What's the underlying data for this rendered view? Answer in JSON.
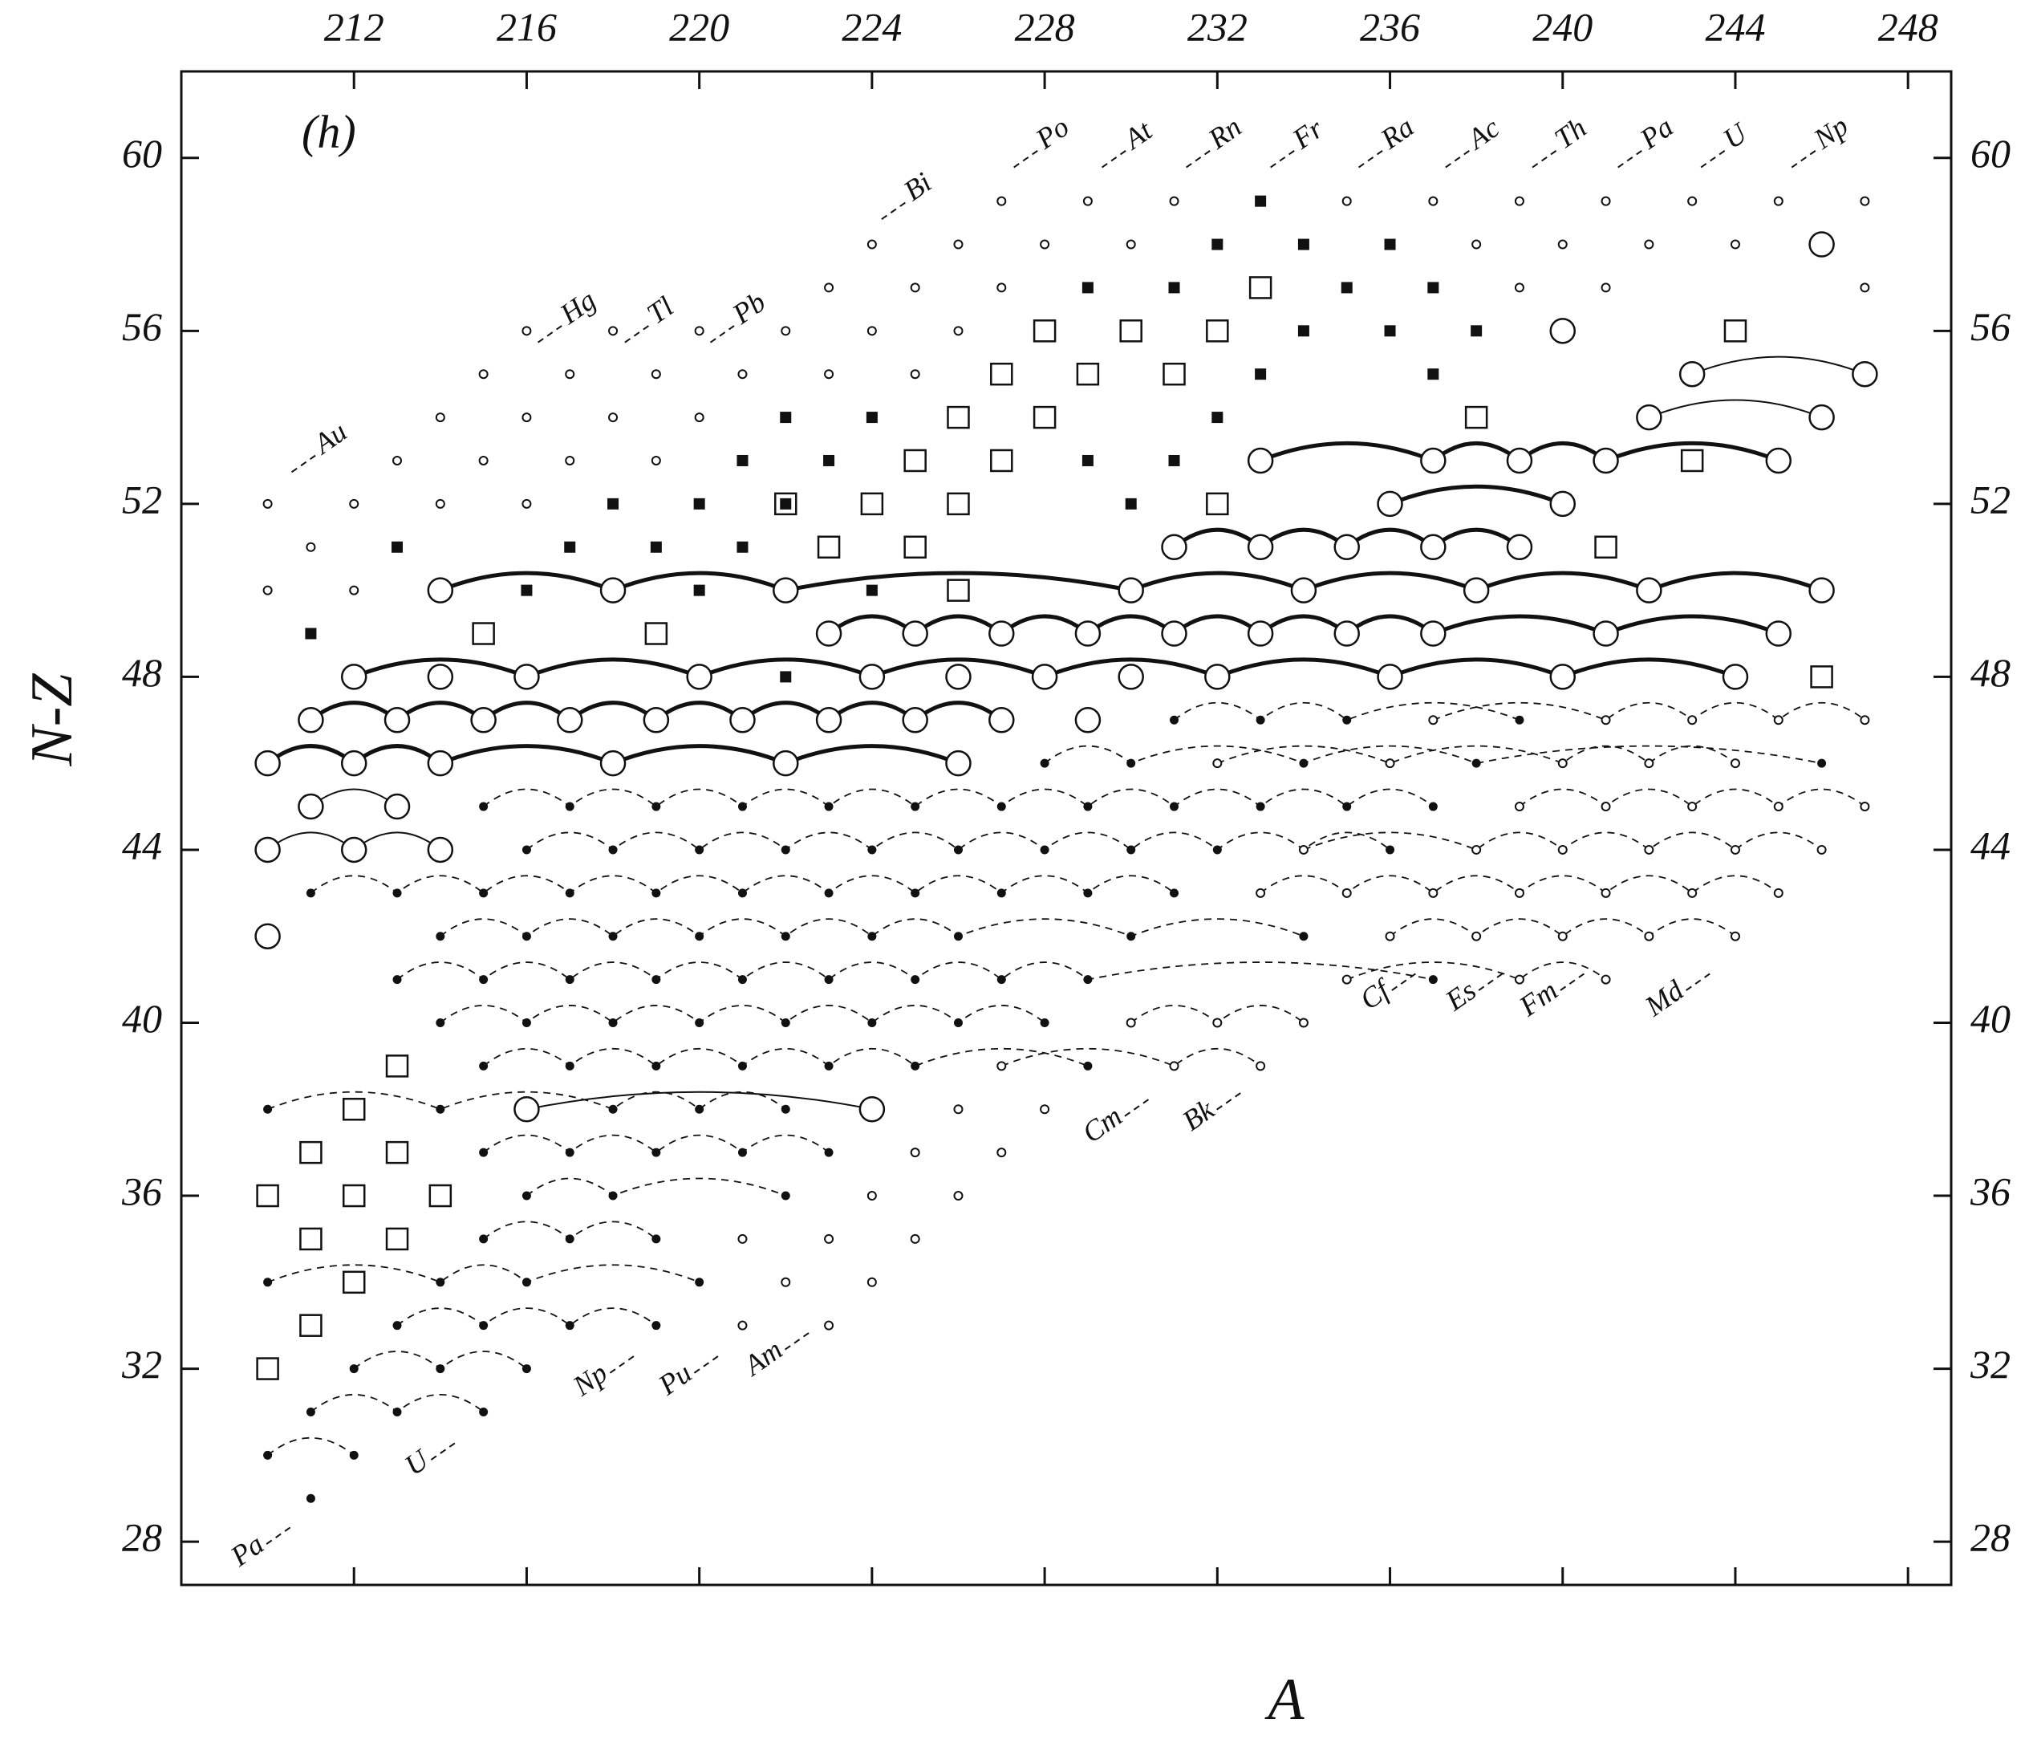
{
  "chart_data": {
    "type": "scatter",
    "panel_label": "(h)",
    "x_label": "A",
    "y_label": "N-Z",
    "xlim": [
      208,
      249
    ],
    "ylim": [
      27,
      62
    ],
    "xticks": [
      212,
      216,
      220,
      224,
      228,
      232,
      236,
      240,
      244,
      248
    ],
    "yticks": [
      28,
      32,
      36,
      40,
      44,
      48,
      52,
      56,
      60
    ],
    "top_labels": [
      "Au",
      "Hg",
      "Tl",
      "Pb",
      "Bi",
      "Po",
      "At",
      "Rn",
      "Fr",
      "Ra",
      "Ac",
      "Th",
      "Pa",
      "U",
      "Np"
    ],
    "bottom_labels": [
      "Pa",
      "U",
      "Np",
      "Pu",
      "Am",
      "Cm",
      "Bk",
      "Cf",
      "Es",
      "Fm",
      "Md"
    ],
    "series": [
      {
        "marker": "circle",
        "line": "thick",
        "x": [
          214,
          218,
          222,
          230,
          234,
          238,
          242,
          246
        ],
        "values": [
          50,
          50,
          50,
          50,
          50,
          50,
          50,
          50
        ]
      },
      {
        "marker": "circle",
        "line": "thick",
        "x": [
          223,
          225,
          227,
          229,
          231,
          233,
          235,
          237,
          241,
          245
        ],
        "values": [
          49,
          49,
          49,
          49,
          49,
          49,
          49,
          49,
          49,
          49
        ]
      },
      {
        "marker": "circle",
        "line": "thick",
        "x": [
          212,
          216,
          220,
          224,
          228,
          232,
          236,
          240,
          244
        ],
        "values": [
          48,
          48,
          48,
          48,
          48,
          48,
          48,
          48,
          48
        ]
      },
      {
        "marker": "circle",
        "line": "thick",
        "x": [
          211,
          213,
          215,
          217,
          219,
          221,
          223,
          225,
          227
        ],
        "values": [
          47,
          47,
          47,
          47,
          47,
          47,
          47,
          47,
          47
        ]
      },
      {
        "marker": "circle",
        "line": "thick",
        "x": [
          210,
          212,
          214,
          218,
          222,
          226
        ],
        "values": [
          46,
          46,
          46,
          46,
          46,
          46
        ]
      },
      {
        "marker": "circle",
        "line": "thin",
        "x": [
          211,
          213
        ],
        "values": [
          45,
          45
        ]
      },
      {
        "marker": "circle",
        "line": "thin",
        "x": [
          210,
          212,
          214
        ],
        "values": [
          44,
          44,
          44
        ]
      },
      {
        "marker": "circle",
        "line": "thick",
        "x": [
          231,
          233,
          235,
          237,
          239
        ],
        "values": [
          51,
          51,
          51,
          51,
          51
        ]
      },
      {
        "marker": "circle",
        "line": "thick",
        "x": [
          236,
          240
        ],
        "values": [
          52,
          52
        ]
      },
      {
        "marker": "circle",
        "line": "thick",
        "x": [
          233,
          237,
          239,
          241,
          245
        ],
        "values": [
          53,
          53,
          53,
          53,
          53
        ]
      },
      {
        "marker": "circle",
        "line": "thin",
        "x": [
          242,
          246
        ],
        "values": [
          54,
          54
        ]
      },
      {
        "marker": "circle",
        "line": "thin",
        "x": [
          243,
          247
        ],
        "values": [
          55,
          55
        ]
      },
      {
        "marker": "circle",
        "line": "thin",
        "x": [
          216,
          224
        ],
        "values": [
          38,
          38
        ]
      },
      {
        "marker": "circle",
        "line": "none",
        "x": [
          210,
          240,
          246,
          214,
          226,
          229,
          230
        ],
        "values": [
          42,
          56,
          58,
          48,
          48,
          47,
          48
        ]
      },
      {
        "marker": "square",
        "line": "none",
        "x": [
          210,
          212,
          214,
          211,
          213,
          212,
          213,
          211,
          213,
          212,
          211,
          210,
          215,
          219,
          226,
          223,
          225,
          241,
          222,
          224,
          226,
          232,
          225,
          227,
          243,
          226,
          228,
          238,
          227,
          229,
          231,
          228,
          230,
          232,
          244,
          233,
          246
        ],
        "values": [
          36,
          36,
          36,
          37,
          37,
          38,
          39,
          35,
          35,
          34,
          33,
          32,
          49,
          49,
          50,
          51,
          51,
          51,
          52,
          52,
          52,
          52,
          53,
          53,
          53,
          54,
          54,
          54,
          55,
          55,
          55,
          56,
          56,
          56,
          56,
          57,
          48
        ]
      },
      {
        "marker": "filled-square",
        "line": "none",
        "x": [
          233,
          232,
          234,
          236,
          229,
          231,
          235,
          237,
          234,
          236,
          238,
          233,
          237,
          222,
          224,
          232,
          221,
          223,
          229,
          231,
          218,
          220,
          222,
          230,
          213,
          217,
          219,
          221,
          216,
          220,
          224,
          211,
          222
        ],
        "values": [
          59,
          58,
          58,
          58,
          57,
          57,
          57,
          57,
          56,
          56,
          56,
          55,
          55,
          54,
          54,
          54,
          53,
          53,
          53,
          53,
          52,
          52,
          52,
          52,
          51,
          51,
          51,
          51,
          50,
          50,
          50,
          49,
          48
        ]
      },
      {
        "marker": "dot",
        "line": "dashed",
        "x": [
          215,
          217,
          219,
          221,
          223,
          225,
          227,
          229,
          231,
          233,
          235,
          237
        ],
        "values": [
          45,
          45,
          45,
          45,
          45,
          45,
          45,
          45,
          45,
          45,
          45,
          45
        ]
      },
      {
        "marker": "dot",
        "line": "dashed",
        "x": [
          216,
          218,
          220,
          222,
          224,
          226,
          228,
          230,
          232,
          234,
          236
        ],
        "values": [
          44,
          44,
          44,
          44,
          44,
          44,
          44,
          44,
          44,
          44,
          44
        ]
      },
      {
        "marker": "dot",
        "line": "dashed",
        "x": [
          211,
          213,
          215,
          217,
          219,
          221,
          223,
          225,
          227,
          229,
          231
        ],
        "values": [
          43,
          43,
          43,
          43,
          43,
          43,
          43,
          43,
          43,
          43,
          43
        ]
      },
      {
        "marker": "dot",
        "line": "dashed",
        "x": [
          214,
          216,
          218,
          220,
          222,
          224,
          226,
          230,
          234
        ],
        "values": [
          42,
          42,
          42,
          42,
          42,
          42,
          42,
          42,
          42
        ]
      },
      {
        "marker": "dot",
        "line": "dashed",
        "x": [
          213,
          215,
          217,
          219,
          221,
          223,
          225,
          227,
          229,
          237
        ],
        "values": [
          41,
          41,
          41,
          41,
          41,
          41,
          41,
          41,
          41,
          41
        ]
      },
      {
        "marker": "dot",
        "line": "dashed",
        "x": [
          214,
          216,
          218,
          220,
          222,
          224,
          226,
          228
        ],
        "values": [
          40,
          40,
          40,
          40,
          40,
          40,
          40,
          40
        ]
      },
      {
        "marker": "dot",
        "line": "dashed",
        "x": [
          215,
          217,
          219,
          221,
          223,
          225,
          229
        ],
        "values": [
          39,
          39,
          39,
          39,
          39,
          39,
          39
        ]
      },
      {
        "marker": "dot",
        "line": "dashed",
        "x": [
          210,
          214,
          218,
          220,
          222
        ],
        "values": [
          38,
          38,
          38,
          38,
          38
        ]
      },
      {
        "marker": "dot",
        "line": "dashed",
        "x": [
          215,
          217,
          219,
          221,
          223
        ],
        "values": [
          37,
          37,
          37,
          37,
          37
        ]
      },
      {
        "marker": "dot",
        "line": "dashed",
        "x": [
          216,
          218,
          222
        ],
        "values": [
          36,
          36,
          36
        ]
      },
      {
        "marker": "dot",
        "line": "dashed",
        "x": [
          215,
          217,
          219
        ],
        "values": [
          35,
          35,
          35
        ]
      },
      {
        "marker": "dot",
        "line": "dashed",
        "x": [
          210,
          214,
          216,
          220
        ],
        "values": [
          34,
          34,
          34,
          34
        ]
      },
      {
        "marker": "dot",
        "line": "dashed",
        "x": [
          213,
          215,
          217,
          219
        ],
        "values": [
          33,
          33,
          33,
          33
        ]
      },
      {
        "marker": "dot",
        "line": "dashed",
        "x": [
          212,
          214,
          216
        ],
        "values": [
          32,
          32,
          32
        ]
      },
      {
        "marker": "dot",
        "line": "dashed",
        "x": [
          211,
          213,
          215
        ],
        "values": [
          31,
          31,
          31
        ]
      },
      {
        "marker": "dot",
        "line": "dashed",
        "x": [
          210,
          212
        ],
        "values": [
          30,
          30
        ]
      },
      {
        "marker": "dot",
        "line": "none",
        "x": [
          211
        ],
        "values": [
          29
        ]
      },
      {
        "marker": "dot",
        "line": "dashed",
        "x": [
          231,
          233,
          235,
          239
        ],
        "values": [
          47,
          47,
          47,
          47
        ]
      },
      {
        "marker": "dot",
        "line": "dashed",
        "x": [
          228,
          230,
          234,
          238,
          246
        ],
        "values": [
          46,
          46,
          46,
          46,
          46
        ]
      },
      {
        "marker": "open-dot",
        "line": "none",
        "x": [
          227,
          229,
          231,
          235,
          237,
          239,
          241,
          243,
          245,
          247
        ],
        "values": [
          59,
          59,
          59,
          59,
          59,
          59,
          59,
          59,
          59,
          59
        ]
      },
      {
        "marker": "open-dot",
        "line": "none",
        "x": [
          224,
          226,
          228,
          230,
          238,
          240,
          242,
          244
        ],
        "values": [
          58,
          58,
          58,
          58,
          58,
          58,
          58,
          58
        ]
      },
      {
        "marker": "open-dot",
        "line": "none",
        "x": [
          223,
          225,
          227,
          239,
          241,
          247
        ],
        "values": [
          57,
          57,
          57,
          57,
          57,
          57
        ]
      },
      {
        "marker": "open-dot",
        "line": "none",
        "x": [
          216,
          218,
          220,
          222,
          224,
          226
        ],
        "values": [
          56,
          56,
          56,
          56,
          56,
          56
        ]
      },
      {
        "marker": "open-dot",
        "line": "none",
        "x": [
          215,
          217,
          219,
          221,
          223,
          225
        ],
        "values": [
          55,
          55,
          55,
          55,
          55,
          55
        ]
      },
      {
        "marker": "open-dot",
        "line": "none",
        "x": [
          214,
          216,
          218,
          220
        ],
        "values": [
          54,
          54,
          54,
          54
        ]
      },
      {
        "marker": "open-dot",
        "line": "none",
        "x": [
          213,
          215,
          217,
          219
        ],
        "values": [
          53,
          53,
          53,
          53
        ]
      },
      {
        "marker": "open-dot",
        "line": "none",
        "x": [
          210,
          212,
          214,
          216
        ],
        "values": [
          52,
          52,
          52,
          52
        ]
      },
      {
        "marker": "open-dot",
        "line": "none",
        "x": [
          211
        ],
        "values": [
          51
        ]
      },
      {
        "marker": "open-dot",
        "line": "none",
        "x": [
          210,
          212
        ],
        "values": [
          50,
          50
        ]
      },
      {
        "marker": "open-dot",
        "line": "dashed",
        "x": [
          237,
          241,
          243,
          245,
          247
        ],
        "values": [
          47,
          47,
          47,
          47,
          47
        ]
      },
      {
        "marker": "open-dot",
        "line": "dashed",
        "x": [
          232,
          236,
          240,
          242,
          244
        ],
        "values": [
          46,
          46,
          46,
          46,
          46
        ]
      },
      {
        "marker": "open-dot",
        "line": "dashed",
        "x": [
          239,
          241,
          243,
          245,
          247
        ],
        "values": [
          45,
          45,
          45,
          45,
          45
        ]
      },
      {
        "marker": "open-dot",
        "line": "dashed",
        "x": [
          234,
          238,
          240,
          242,
          244,
          246
        ],
        "values": [
          44,
          44,
          44,
          44,
          44,
          44
        ]
      },
      {
        "marker": "open-dot",
        "line": "dashed",
        "x": [
          233,
          235,
          237,
          239,
          241,
          243,
          245
        ],
        "values": [
          43,
          43,
          43,
          43,
          43,
          43,
          43
        ]
      },
      {
        "marker": "open-dot",
        "line": "dashed",
        "x": [
          236,
          238,
          240,
          242,
          244
        ],
        "values": [
          42,
          42,
          42,
          42,
          42
        ]
      },
      {
        "marker": "open-dot",
        "line": "dashed",
        "x": [
          235,
          239,
          241
        ],
        "values": [
          41,
          41,
          41
        ]
      },
      {
        "marker": "open-dot",
        "line": "dashed",
        "x": [
          230,
          232,
          234
        ],
        "values": [
          40,
          40,
          40
        ]
      },
      {
        "marker": "open-dot",
        "line": "dashed",
        "x": [
          227,
          231,
          233
        ],
        "values": [
          39,
          39,
          39
        ]
      },
      {
        "marker": "open-dot",
        "line": "none",
        "x": [
          226,
          228
        ],
        "values": [
          38,
          38
        ]
      },
      {
        "marker": "open-dot",
        "line": "none",
        "x": [
          225,
          227
        ],
        "values": [
          37,
          37
        ]
      },
      {
        "marker": "open-dot",
        "line": "none",
        "x": [
          224,
          226
        ],
        "values": [
          36,
          36
        ]
      },
      {
        "marker": "open-dot",
        "line": "none",
        "x": [
          221,
          223,
          225
        ],
        "values": [
          35,
          35,
          35
        ]
      },
      {
        "marker": "open-dot",
        "line": "none",
        "x": [
          222,
          224
        ],
        "values": [
          34,
          34
        ]
      },
      {
        "marker": "open-dot",
        "line": "none",
        "x": [
          221,
          223
        ],
        "values": [
          33,
          33
        ]
      }
    ]
  }
}
